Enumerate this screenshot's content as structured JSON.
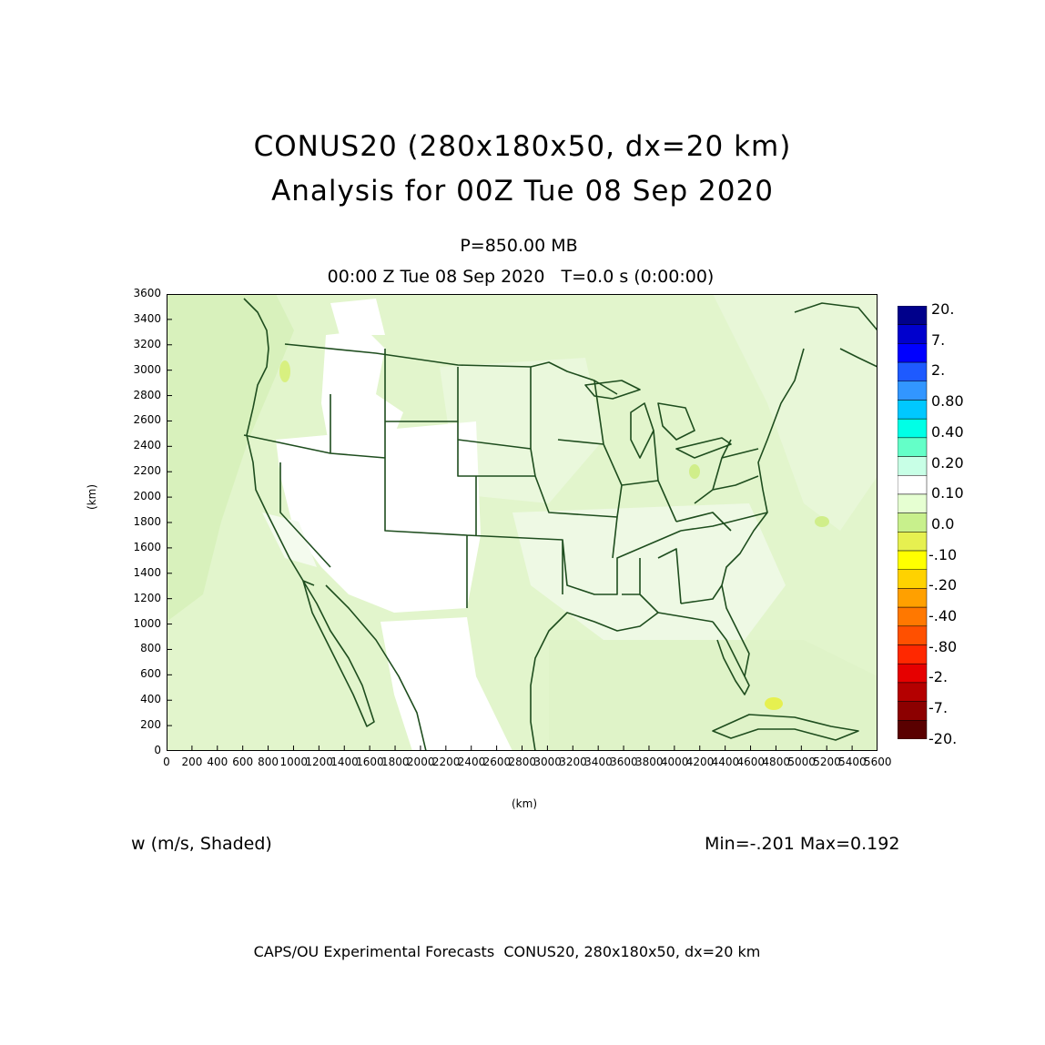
{
  "title": {
    "line1": "CONUS20 (280x180x50, dx=20 km)",
    "line2": "Analysis for 00Z Tue 08 Sep 2020"
  },
  "level": "P=850.00 MB",
  "timeline": "00:00 Z Tue 08 Sep 2020   T=0.0 s (0:00:00)",
  "variable": "w (m/s, Shaded)",
  "minmax": "Min=-.201 Max=0.192",
  "footer": "CAPS/OU Experimental Forecasts  CONUS20, 280x180x50, dx=20 km",
  "axes": {
    "xlabel": "(km)",
    "ylabel": "(km)",
    "xlim": [
      0,
      5600
    ],
    "ylim": [
      0,
      3600
    ],
    "xticks": [
      "0",
      "200",
      "400",
      "600",
      "800",
      "1000",
      "1200",
      "1400",
      "1600",
      "1800",
      "2000",
      "2200",
      "2400",
      "2600",
      "2800",
      "3000",
      "3200",
      "3400",
      "3600",
      "3800",
      "4000",
      "4200",
      "4400",
      "4600",
      "4800",
      "5000",
      "5200",
      "5400",
      "5600"
    ],
    "yticks": [
      "0",
      "200",
      "400",
      "600",
      "800",
      "1000",
      "1200",
      "1400",
      "1600",
      "1800",
      "2000",
      "2200",
      "2400",
      "2600",
      "2800",
      "3000",
      "3200",
      "3400",
      "3600"
    ]
  },
  "colorbar": {
    "labels": [
      "20.",
      "7.",
      "2.",
      "0.80",
      "0.40",
      "0.20",
      "0.10",
      "0.0",
      "-.10",
      "-.20",
      "-.40",
      "-.80",
      "-2.",
      "-7.",
      "-20."
    ],
    "colors": [
      "#00008b",
      "#0000cd",
      "#0000ff",
      "#1e5aff",
      "#3296ff",
      "#00c8ff",
      "#00ffe6",
      "#64ffc8",
      "#c8ffe6",
      "#ffffff",
      "#e6ffd2",
      "#c8f08c",
      "#e6f050",
      "#ffff00",
      "#ffd200",
      "#ffa000",
      "#ff7800",
      "#ff5000",
      "#ff2800",
      "#e60000",
      "#b40000",
      "#8c0000",
      "#5a0000"
    ]
  },
  "map_colors": {
    "background": "#e2f5cc",
    "light": "#eef9e2",
    "white": "#ffffff",
    "yellow": "#d8f080",
    "border": "#1e4d1e"
  }
}
